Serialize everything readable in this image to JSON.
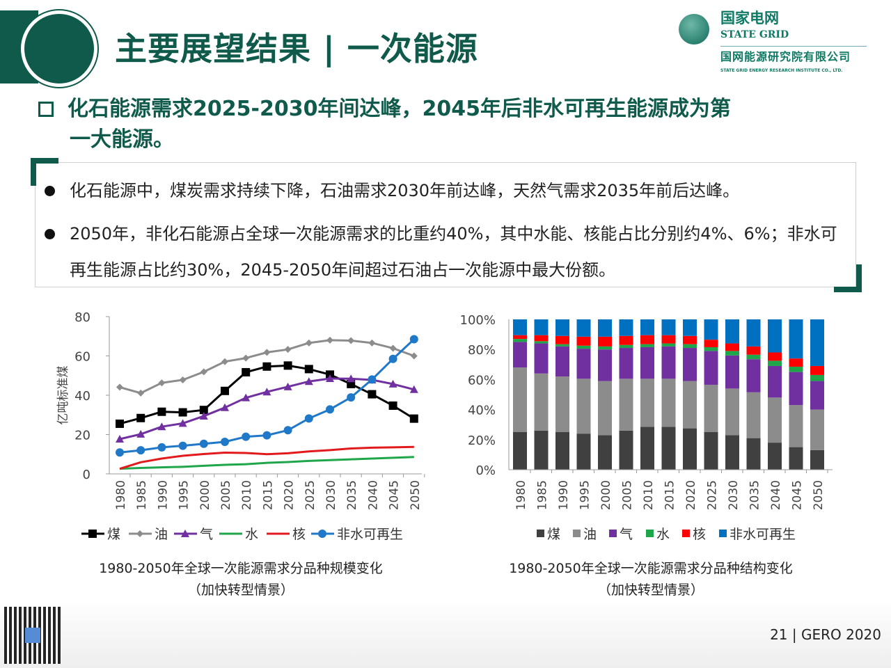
{
  "header": {
    "title": "主要展望结果 | 一次能源"
  },
  "logo": {
    "cn": "国家电网",
    "en": "STATE GRID",
    "cn2": "国网能源研究院有限公司",
    "en2": "STATE GRID ENERGY RESEARCH INSTITUTE CO., LTD."
  },
  "heading": {
    "line1": "化石能源需求2025-2030年间达峰，2045年后非水可再生能源成为第",
    "line2": "一大能源。"
  },
  "bullets": [
    "化石能源中，煤炭需求持续下降，石油需求2030年前达峰，天然气需求2035年前后达峰。",
    "2050年，非化石能源占全球一次能源需求的比重约40%，其中水能、核能占比分别约4%、6%；非水可再生能源占比约30%，2045-2050年间超过石油占一次能源中最大份额。"
  ],
  "captions": [
    {
      "line1": "1980-2050年全球一次能源需求分品种规模变化",
      "line2": "（加快转型情景）"
    },
    {
      "line1": "1980-2050年全球一次能源需求分品种结构变化",
      "line2": "（加快转型情景）"
    }
  ],
  "footer": {
    "page": "21 | GERO 2020"
  },
  "chart_data": [
    {
      "type": "line",
      "ylabel": "亿吨标准煤",
      "ylim": [
        0,
        80
      ],
      "yticks": [
        "0",
        "20",
        "40",
        "60",
        "80"
      ],
      "categories": [
        "1980",
        "1985",
        "1990",
        "1995",
        "2000",
        "2005",
        "2010",
        "2015",
        "2020",
        "2025",
        "2030",
        "2035",
        "2040",
        "2045",
        "2050"
      ],
      "legend": "bottom",
      "series": [
        {
          "name": "煤",
          "color": "#000000",
          "marker": "square",
          "values": [
            25.5,
            28.4,
            31.6,
            31.3,
            32.5,
            42.2,
            51.7,
            54.6,
            55.1,
            53.3,
            50.5,
            45.7,
            40.5,
            34.7,
            28.1
          ]
        },
        {
          "name": "油",
          "color": "#8c8c8c",
          "marker": "diamond",
          "values": [
            44.1,
            41.1,
            46.3,
            47.8,
            51.9,
            57.1,
            58.9,
            61.8,
            63.3,
            66.6,
            68.0,
            67.8,
            66.6,
            63.9,
            60.0
          ]
        },
        {
          "name": "气",
          "color": "#7030a0",
          "marker": "triangle",
          "values": [
            17.7,
            20.2,
            24.0,
            25.7,
            29.4,
            33.7,
            38.7,
            41.7,
            44.3,
            47.0,
            48.5,
            48.4,
            47.8,
            45.7,
            42.9
          ]
        },
        {
          "name": "水",
          "color": "#1fa64a",
          "marker": "none",
          "values": [
            2.6,
            3.0,
            3.3,
            3.6,
            4.1,
            4.6,
            4.9,
            5.6,
            6.0,
            6.6,
            7.0,
            7.4,
            7.8,
            8.2,
            8.6
          ]
        },
        {
          "name": "核",
          "color": "#e31a1c",
          "marker": "none",
          "values": [
            2.6,
            5.9,
            7.8,
            9.2,
            10.1,
            10.8,
            10.6,
            10.0,
            10.5,
            11.4,
            12.1,
            12.9,
            13.3,
            13.5,
            13.7
          ]
        },
        {
          "name": "非水可再生",
          "color": "#1f78c8",
          "marker": "circle",
          "values": [
            10.9,
            12.0,
            13.5,
            14.3,
            15.3,
            16.3,
            18.9,
            19.6,
            22.2,
            28.2,
            32.8,
            38.9,
            48.0,
            58.5,
            68.5
          ]
        }
      ]
    },
    {
      "type": "bar",
      "stacked": true,
      "ylim": [
        0,
        100
      ],
      "yticks": [
        "0%",
        "20%",
        "40%",
        "60%",
        "80%",
        "100%"
      ],
      "categories": [
        "1980",
        "1985",
        "1990",
        "1995",
        "2000",
        "2005",
        "2010",
        "2015",
        "2020",
        "2025",
        "2030",
        "2035",
        "2040",
        "2045",
        "2050"
      ],
      "legend": "bottom",
      "series": [
        {
          "name": "煤",
          "color": "#404040",
          "values": [
            25,
            26,
            25,
            24,
            23,
            26,
            28.5,
            28.5,
            27.5,
            25,
            23,
            21,
            18,
            15,
            13
          ]
        },
        {
          "name": "油",
          "color": "#8c8c8c",
          "values": [
            43,
            38,
            37,
            36.5,
            36,
            34.5,
            32,
            32,
            31.5,
            31.5,
            31,
            30.5,
            30,
            28,
            27
          ]
        },
        {
          "name": "气",
          "color": "#7030a0",
          "values": [
            17,
            20,
            20,
            20,
            21,
            20.5,
            21,
            21.5,
            22,
            22.5,
            22,
            22,
            21,
            22,
            19
          ]
        },
        {
          "name": "水",
          "color": "#1fa64a",
          "values": [
            2,
            1.5,
            1.5,
            2,
            2,
            2,
            2,
            2,
            2.5,
            2.5,
            3,
            3,
            3.5,
            3.5,
            4
          ]
        },
        {
          "name": "核",
          "color": "#ff0000",
          "values": [
            2.5,
            4,
            5.5,
            6,
            6.5,
            6,
            6,
            5.5,
            5.5,
            5,
            5,
            5.5,
            5.5,
            5.5,
            6
          ]
        },
        {
          "name": "非水可再生",
          "color": "#0070c0",
          "values": [
            10.5,
            10.5,
            11,
            11.5,
            11.5,
            11,
            10.5,
            10.5,
            11,
            13.5,
            16,
            18,
            22,
            26,
            31
          ]
        }
      ]
    }
  ]
}
